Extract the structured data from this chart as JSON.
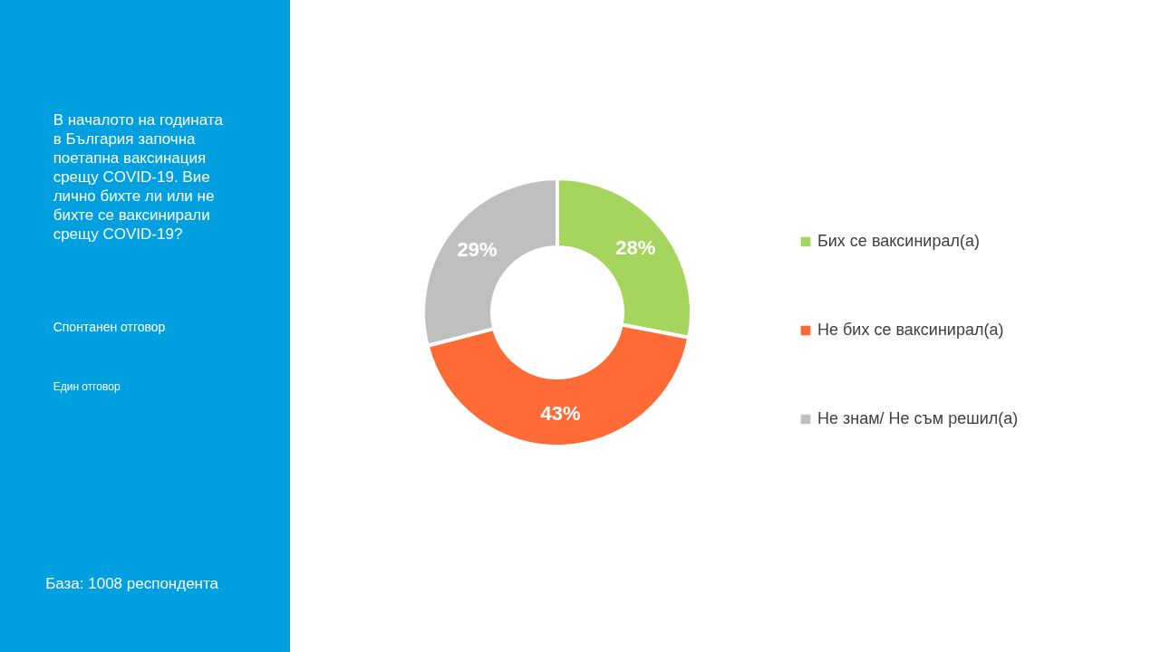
{
  "chart_data": {
    "type": "donut",
    "title": "В началото на годината в България започна поетапна ваксинация срещу COVID-19. Вие лично бихте ли или не бихте се ваксинирали срещу COVID-19?",
    "subtitle": "Спонтанен отговор",
    "annotations": [
      "Един отговор",
      "База: 1008 респондента"
    ],
    "categories": [
      "Бих се ваксинирал(а)",
      "Не бих се ваксинирал(а)",
      "Не знам/ Не съм решил(а)"
    ],
    "values": [
      28,
      43,
      29
    ],
    "value_labels": [
      "28%",
      "43%",
      "29%"
    ],
    "colors": [
      "#a5d55d",
      "#ff6b37",
      "#bfbfbf"
    ],
    "legend": "right"
  }
}
